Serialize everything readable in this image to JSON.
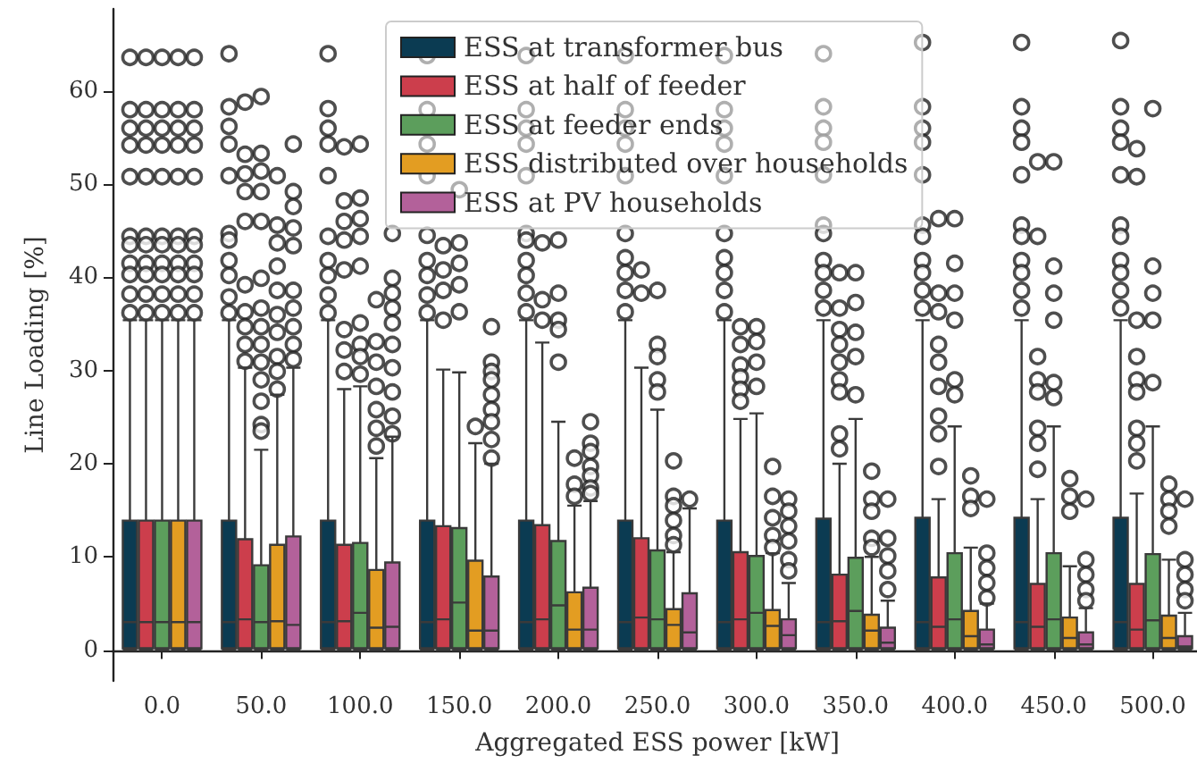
{
  "chart_data": {
    "type": "box",
    "xlabel": "Aggregated ESS power [kW]",
    "ylabel": "Line Loading [%]",
    "categories": [
      "0.0",
      "50.0",
      "100.0",
      "150.0",
      "200.0",
      "250.0",
      "300.0",
      "350.0",
      "400.0",
      "450.0",
      "500.0"
    ],
    "ylim": [
      -3.3,
      68.8
    ],
    "yticks": [
      0,
      10,
      20,
      30,
      40,
      50,
      60
    ],
    "legend": "top",
    "series": [
      {
        "name": "ESS at transformer bus",
        "color": "#0b3b52",
        "boxes": [
          {
            "low": 0,
            "q1": 0.2,
            "median": 3.0,
            "q3": 13.9,
            "high": 35.4,
            "outliers": [
              63.6,
              58.0,
              56.0,
              54.2,
              50.8,
              44.4,
              43.5,
              41.5,
              40.3,
              38.2,
              36.2
            ]
          },
          {
            "low": 0,
            "q1": 0.2,
            "median": 3.0,
            "q3": 13.9,
            "high": 35.4,
            "outliers": [
              64.0,
              58.3,
              56.2,
              54.3,
              50.9,
              44.7,
              44.0,
              41.8,
              40.2,
              37.9,
              36.2
            ]
          },
          {
            "low": 0,
            "q1": 0.2,
            "median": 3.0,
            "q3": 13.9,
            "high": 35.4,
            "outliers": [
              64.0,
              58.1,
              56.0,
              54.3,
              50.9,
              44.4,
              41.8,
              40.2,
              38.1,
              36.2
            ]
          },
          {
            "low": 0,
            "q1": 0.2,
            "median": 3.0,
            "q3": 13.9,
            "high": 35.4,
            "outliers": [
              63.8,
              58.0,
              56.0,
              54.3,
              50.9,
              44.5,
              41.8,
              40.2,
              38.1,
              36.2
            ]
          },
          {
            "low": 0,
            "q1": 0.2,
            "median": 3.0,
            "q3": 13.9,
            "high": 35.4,
            "outliers": [
              63.8,
              58.0,
              56.0,
              54.3,
              50.9,
              44.7,
              44.0,
              41.8,
              40.2,
              38.3,
              36.3
            ]
          },
          {
            "low": 0,
            "q1": 0.2,
            "median": 3.0,
            "q3": 13.9,
            "high": 35.4,
            "outliers": [
              63.8,
              58.0,
              56.0,
              54.3,
              50.9,
              44.7,
              42.1,
              40.5,
              38.6,
              36.3
            ]
          },
          {
            "low": 0,
            "q1": 0.2,
            "median": 3.0,
            "q3": 13.9,
            "high": 35.4,
            "outliers": [
              63.8,
              58.0,
              56.0,
              54.3,
              50.9,
              44.7,
              42.1,
              40.5,
              38.6,
              36.3
            ]
          },
          {
            "low": 0,
            "q1": 0.2,
            "median": 3.0,
            "q3": 14.1,
            "high": 35.4,
            "outliers": [
              64.0,
              58.3,
              56.0,
              54.5,
              51.0,
              45.6,
              44.7,
              41.8,
              40.5,
              38.6,
              36.7
            ]
          },
          {
            "low": 0,
            "q1": 0.2,
            "median": 3.0,
            "q3": 14.2,
            "high": 35.4,
            "outliers": [
              65.2,
              58.3,
              56.0,
              54.5,
              51.0,
              45.6,
              44.4,
              41.8,
              40.5,
              38.6,
              36.7
            ]
          },
          {
            "low": 0,
            "q1": 0.2,
            "median": 3.0,
            "q3": 14.2,
            "high": 35.4,
            "outliers": [
              65.2,
              58.3,
              56.0,
              54.5,
              51.0,
              45.6,
              44.4,
              41.8,
              40.5,
              38.6,
              36.7
            ]
          },
          {
            "low": 0,
            "q1": 0.2,
            "median": 3.0,
            "q3": 14.2,
            "high": 35.4,
            "outliers": [
              65.4,
              58.3,
              56.0,
              54.5,
              51.0,
              45.6,
              44.4,
              41.8,
              40.5,
              38.6,
              36.7
            ]
          }
        ]
      },
      {
        "name": "ESS at half of feeder",
        "color": "#cc3e4c",
        "boxes": [
          {
            "low": 0,
            "q1": 0.2,
            "median": 3.0,
            "q3": 13.9,
            "high": 35.4,
            "outliers": [
              63.6,
              58.0,
              56.0,
              54.2,
              50.8,
              44.4,
              43.5,
              41.5,
              40.3,
              38.2,
              36.2
            ]
          },
          {
            "low": 0,
            "q1": 0.2,
            "median": 3.3,
            "q3": 11.9,
            "high": 30.3,
            "outliers": [
              58.8,
              53.2,
              51.1,
              49.2,
              46.0,
              39.2,
              36.3,
              34.7,
              32.8,
              31.0
            ]
          },
          {
            "low": 0,
            "q1": 0.2,
            "median": 3.1,
            "q3": 11.3,
            "high": 28.0,
            "outliers": [
              54.0,
              48.2,
              46.0,
              44.0,
              40.8,
              34.4,
              32.2,
              29.9
            ]
          },
          {
            "low": 0,
            "q1": 0.2,
            "median": 3.3,
            "q3": 13.3,
            "high": 30.1,
            "outliers": [
              43.4,
              40.8,
              38.6,
              35.4
            ]
          },
          {
            "low": 0,
            "q1": 0.2,
            "median": 3.3,
            "q3": 13.4,
            "high": 33.0,
            "outliers": [
              43.7,
              37.6,
              35.4
            ]
          },
          {
            "low": 0,
            "q1": 0.2,
            "median": 3.5,
            "q3": 12.0,
            "high": 30.3,
            "outliers": [
              40.8,
              38.3
            ]
          },
          {
            "low": 0,
            "q1": 0.2,
            "median": 3.3,
            "q3": 10.5,
            "high": 24.8,
            "outliers": [
              34.7,
              32.8,
              30.6,
              29.3,
              28.0,
              26.7
            ]
          },
          {
            "low": 0,
            "q1": 0.2,
            "median": 3.1,
            "q3": 8.1,
            "high": 20.0,
            "outliers": [
              40.5,
              36.7,
              34.4,
              32.8,
              30.9,
              29.0,
              27.7,
              23.2,
              21.6
            ]
          },
          {
            "low": 0,
            "q1": 0.2,
            "median": 2.5,
            "q3": 7.8,
            "high": 16.2,
            "outliers": [
              46.3,
              38.3,
              36.3,
              32.8,
              30.9,
              28.3,
              25.1,
              23.2,
              19.7
            ]
          },
          {
            "low": 0,
            "q1": 0.2,
            "median": 2.5,
            "q3": 7.1,
            "high": 16.2,
            "outliers": [
              52.4,
              44.4,
              31.5,
              29.0,
              27.7,
              23.8,
              22.2,
              19.4
            ]
          },
          {
            "low": 0,
            "q1": 0.2,
            "median": 2.2,
            "q3": 7.1,
            "high": 16.8,
            "outliers": [
              53.8,
              50.8,
              35.4,
              31.5,
              29.0,
              27.7,
              23.8,
              22.2,
              20.3
            ]
          }
        ]
      },
      {
        "name": "ESS at feeder ends",
        "color": "#5c9e5c",
        "boxes": [
          {
            "low": 0,
            "q1": 0.2,
            "median": 3.0,
            "q3": 13.9,
            "high": 35.4,
            "outliers": [
              63.6,
              58.0,
              56.0,
              54.2,
              50.8,
              44.4,
              43.5,
              41.5,
              40.3,
              38.2,
              36.2
            ]
          },
          {
            "low": 0,
            "q1": 0.2,
            "median": 3.0,
            "q3": 9.1,
            "high": 21.5,
            "outliers": [
              59.4,
              53.3,
              51.4,
              49.2,
              46.0,
              39.9,
              36.7,
              34.7,
              32.8,
              30.9,
              29.0,
              26.7,
              24.2,
              23.5
            ]
          },
          {
            "low": 0,
            "q1": 0.2,
            "median": 4.0,
            "q3": 11.5,
            "high": 28.3,
            "outliers": [
              54.3,
              48.5,
              46.3,
              44.4,
              41.2,
              35.1,
              32.8,
              31.5,
              29.6
            ]
          },
          {
            "low": 0,
            "q1": 0.2,
            "median": 5.1,
            "q3": 13.1,
            "high": 29.8,
            "outliers": [
              49.4,
              43.7,
              41.5,
              39.2,
              36.3
            ]
          },
          {
            "low": 0,
            "q1": 0.2,
            "median": 4.8,
            "q3": 11.7,
            "high": 24.5,
            "outliers": [
              44.0,
              38.3,
              35.4,
              34.4,
              30.9
            ]
          },
          {
            "low": 0,
            "q1": 0.2,
            "median": 3.3,
            "q3": 10.7,
            "high": 25.8,
            "outliers": [
              38.6,
              32.8,
              31.5,
              29.0,
              27.7
            ]
          },
          {
            "low": 0,
            "q1": 0.2,
            "median": 4.0,
            "q3": 10.1,
            "high": 25.4,
            "outliers": [
              34.7,
              33.1,
              30.9,
              28.3
            ]
          },
          {
            "low": 0,
            "q1": 0.2,
            "median": 4.2,
            "q3": 9.9,
            "high": 24.8,
            "outliers": [
              40.5,
              37.3,
              34.1,
              31.5,
              27.4
            ]
          },
          {
            "low": 0,
            "q1": 0.2,
            "median": 3.3,
            "q3": 10.4,
            "high": 24.0,
            "outliers": [
              46.3,
              41.5,
              38.3,
              35.4,
              29.0,
              27.4
            ]
          },
          {
            "low": 0,
            "q1": 0.2,
            "median": 3.3,
            "q3": 10.4,
            "high": 24.0,
            "outliers": [
              52.4,
              41.2,
              38.3,
              35.4,
              28.7,
              27.1
            ]
          },
          {
            "low": 0,
            "q1": 0.2,
            "median": 3.2,
            "q3": 10.3,
            "high": 24.0,
            "outliers": [
              58.1,
              41.2,
              38.3,
              35.4,
              28.7
            ]
          }
        ]
      },
      {
        "name": "ESS distributed over households",
        "color": "#e39d22",
        "boxes": [
          {
            "low": 0,
            "q1": 0.2,
            "median": 3.0,
            "q3": 13.9,
            "high": 35.4,
            "outliers": [
              63.6,
              58.0,
              56.0,
              54.2,
              50.8,
              44.4,
              43.5,
              41.5,
              40.3,
              38.2,
              36.2
            ]
          },
          {
            "low": 0,
            "q1": 0.2,
            "median": 3.1,
            "q3": 11.3,
            "high": 27.4,
            "outliers": [
              50.9,
              45.6,
              43.7,
              41.2,
              38.6,
              36.0,
              34.1,
              31.5,
              29.9,
              28.0
            ]
          },
          {
            "low": 0,
            "q1": 0.2,
            "median": 2.4,
            "q3": 8.6,
            "high": 20.6,
            "outliers": [
              37.6,
              33.1,
              30.9,
              28.3,
              25.8,
              23.8,
              21.9
            ]
          },
          {
            "low": 0,
            "q1": 0.2,
            "median": 2.1,
            "q3": 9.6,
            "high": 22.2,
            "outliers": [
              24.0
            ]
          },
          {
            "low": 0,
            "q1": 0.2,
            "median": 2.2,
            "q3": 6.2,
            "high": 15.5,
            "outliers": [
              20.6,
              17.8,
              16.5
            ]
          },
          {
            "low": 0,
            "q1": 0.2,
            "median": 2.7,
            "q3": 4.4,
            "high": 10.5,
            "outliers": [
              20.3,
              16.5,
              15.5,
              13.9,
              12.3,
              11.3
            ]
          },
          {
            "low": 0,
            "q1": 0.2,
            "median": 2.6,
            "q3": 4.3,
            "high": 10.4,
            "outliers": [
              19.7,
              16.5,
              14.2,
              12.3,
              11.0
            ]
          },
          {
            "low": 0,
            "q1": 0.2,
            "median": 2.1,
            "q3": 3.8,
            "high": 10.0,
            "outliers": [
              19.2,
              16.2,
              14.9,
              12.0,
              11.0
            ]
          },
          {
            "low": 0,
            "q1": 0.2,
            "median": 1.5,
            "q3": 4.2,
            "high": 11.0,
            "outliers": [
              18.7,
              16.5,
              15.2
            ]
          },
          {
            "low": 0,
            "q1": 0.2,
            "median": 1.3,
            "q3": 3.5,
            "high": 9.0,
            "outliers": [
              18.4,
              16.5,
              14.9
            ]
          },
          {
            "low": 0,
            "q1": 0.2,
            "median": 1.3,
            "q3": 3.7,
            "high": 9.7,
            "outliers": [
              17.8,
              16.2,
              14.9,
              13.3
            ]
          }
        ]
      },
      {
        "name": "ESS at PV households",
        "color": "#b3619a",
        "boxes": [
          {
            "low": 0,
            "q1": 0.2,
            "median": 3.0,
            "q3": 13.9,
            "high": 35.4,
            "outliers": [
              63.6,
              58.0,
              56.0,
              54.2,
              50.8,
              44.4,
              43.5,
              41.5,
              40.3,
              38.2,
              36.2
            ]
          },
          {
            "low": 0,
            "q1": 0.2,
            "median": 2.7,
            "q3": 12.2,
            "high": 30.3,
            "outliers": [
              54.3,
              49.2,
              47.6,
              45.3,
              43.4,
              38.6,
              36.7,
              34.7,
              32.8,
              31.2
            ]
          },
          {
            "low": 0,
            "q1": 0.2,
            "median": 2.5,
            "q3": 9.4,
            "high": 22.9,
            "outliers": [
              44.7,
              39.9,
              38.3,
              36.7,
              35.1,
              32.8,
              30.3,
              27.7,
              25.1,
              23.2
            ]
          },
          {
            "low": 0,
            "q1": 0.2,
            "median": 2.1,
            "q3": 7.9,
            "high": 20.0,
            "outliers": [
              34.7,
              30.9,
              29.9,
              29.0,
              27.4,
              25.8,
              24.5,
              22.6,
              20.6
            ]
          },
          {
            "low": 0,
            "q1": 0.2,
            "median": 2.2,
            "q3": 6.7,
            "high": 16.0,
            "outliers": [
              24.5,
              22.2,
              21.3,
              19.7,
              18.7,
              17.4,
              16.8
            ]
          },
          {
            "low": 0,
            "q1": 0.2,
            "median": 1.9,
            "q3": 6.1,
            "high": 15.2,
            "outliers": [
              16.2
            ]
          },
          {
            "low": 0,
            "q1": 0.2,
            "median": 1.6,
            "q3": 3.3,
            "high": 7.2,
            "outliers": [
              16.2,
              14.9,
              13.3,
              11.7,
              9.7,
              8.5
            ]
          },
          {
            "low": 0,
            "q1": 0.2,
            "median": 0.8,
            "q3": 2.4,
            "high": 5.3,
            "outliers": [
              16.2,
              12.0,
              10.1,
              8.5,
              6.5
            ]
          },
          {
            "low": 0,
            "q1": 0.2,
            "median": 0.6,
            "q3": 2.2,
            "high": 5.0,
            "outliers": [
              16.2,
              10.4,
              8.8,
              7.2,
              5.6
            ]
          },
          {
            "low": 0,
            "q1": 0.2,
            "median": 0.6,
            "q3": 1.9,
            "high": 4.5,
            "outliers": [
              16.2,
              9.7,
              8.1,
              6.5,
              5.3
            ]
          },
          {
            "low": 0,
            "q1": 0.2,
            "median": 0.4,
            "q3": 1.5,
            "high": 4.0,
            "outliers": [
              16.2,
              9.7,
              8.1,
              6.5,
              5.3
            ]
          }
        ]
      }
    ]
  }
}
